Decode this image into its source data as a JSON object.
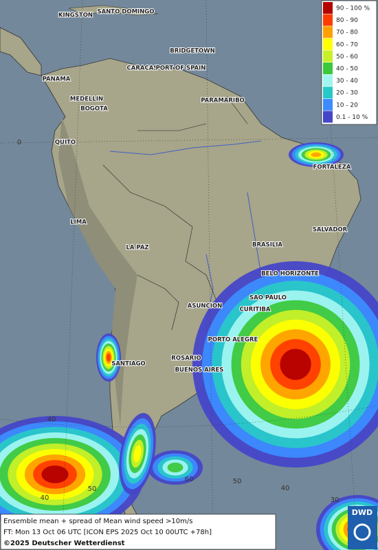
{
  "legend": {
    "items": [
      {
        "label": "90 - 100 %",
        "color": "#b40000"
      },
      {
        "label": "80 - 90",
        "color": "#ff3c00"
      },
      {
        "label": "70 - 80",
        "color": "#ffa000"
      },
      {
        "label": "60 - 70",
        "color": "#ffff00"
      },
      {
        "label": "50 - 60",
        "color": "#c8f028"
      },
      {
        "label": "40 - 50",
        "color": "#3cc83c"
      },
      {
        "label": "30 - 40",
        "color": "#a0f5f0"
      },
      {
        "label": "20 - 30",
        "color": "#28c8c8"
      },
      {
        "label": "10 - 20",
        "color": "#3c8cff"
      },
      {
        "label": "0.1 - 10 %",
        "color": "#4646c8"
      }
    ]
  },
  "cities": [
    "KINGSTON",
    "SANTO DOMINGO",
    "BRIDGETOWN",
    "CARACAS",
    "PORT OF SPAIN",
    "PANAMA",
    "MEDELLIN",
    "BOGOTA",
    "PARAMARIBO",
    "QUITO",
    "FORTALEZA",
    "LIMA",
    "SALVADOR",
    "LA PAZ",
    "BRASILIA",
    "BELO HORIZONTE",
    "SAO PAULO",
    "ASUNCION",
    "CURITIBA",
    "PORTO ALEGRE",
    "SANTIAGO",
    "ROSARIO",
    "BUENOS AIRES"
  ],
  "grid_labels": [
    "0",
    "40",
    "40",
    "50",
    "60",
    "50",
    "40",
    "30"
  ],
  "footer": {
    "line1": "Ensemble mean + spread of Mean wind speed >10m/s",
    "line2": "FT: Mon 13 Oct 06 UTC [ICON EPS 2025 Oct 10 00UTC +78h]",
    "copyright": "©2025 Deutscher Wetterdienst"
  },
  "logo": "DWD"
}
